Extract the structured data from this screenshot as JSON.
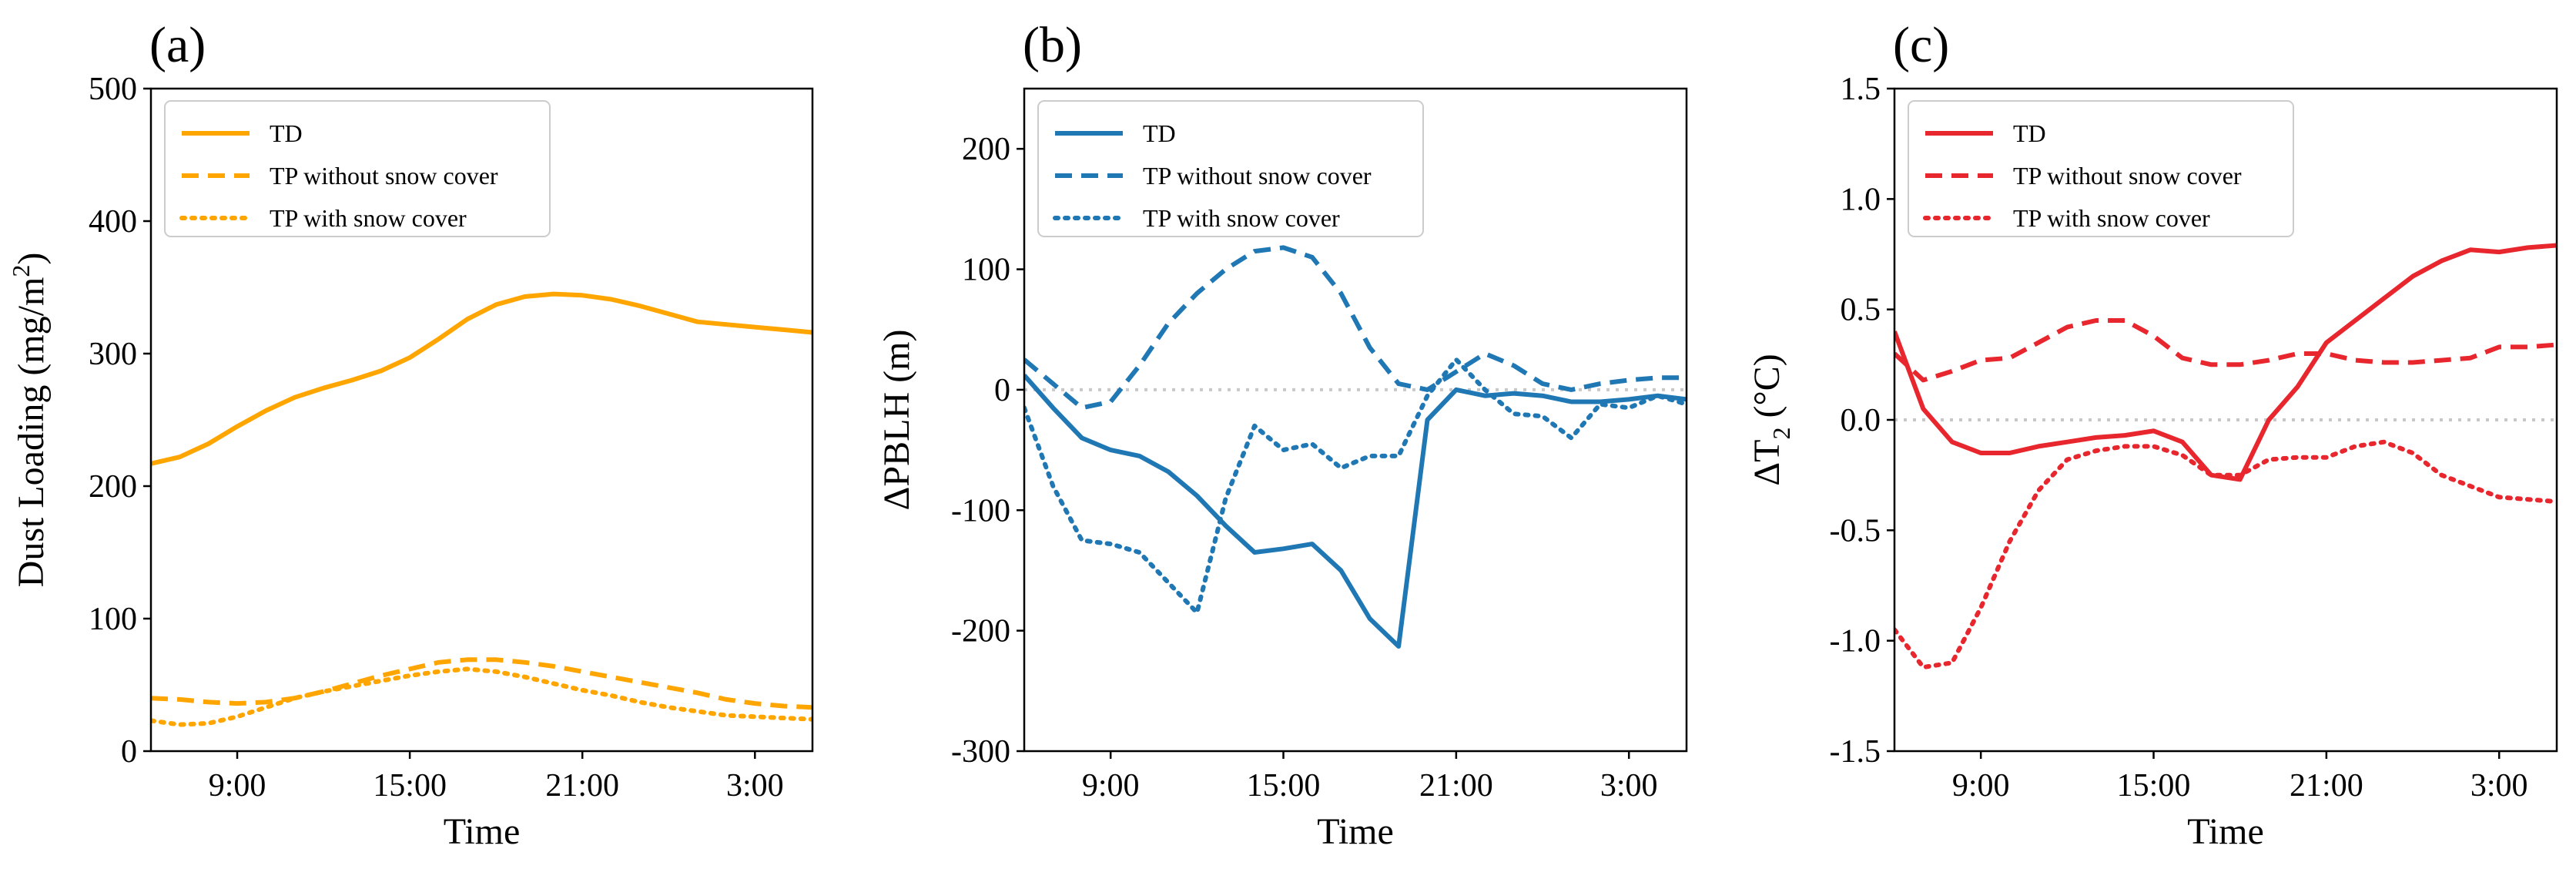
{
  "figure": {
    "time_ticks": [
      "9:00",
      "15:00",
      "21:00",
      "3:00"
    ],
    "zero_line_color": "#c8c8c8"
  },
  "chart_data": [
    {
      "type": "line",
      "panel_label": "(a)",
      "title": "",
      "xlabel": "Time",
      "ylabel": "Dust Loading (mg/m²)",
      "ylabel_parts": {
        "main": "Dust Loading (mg/m",
        "sup": "2",
        "end": ")"
      },
      "x_unit": "hours since 06:00",
      "xlim": [
        0,
        23
      ],
      "xticks": [
        3,
        9,
        15,
        21
      ],
      "xtick_labels": [
        "9:00",
        "15:00",
        "21:00",
        "3:00"
      ],
      "ylim": [
        0,
        500
      ],
      "yticks": [
        0,
        100,
        200,
        300,
        400,
        500
      ],
      "ytick_labels": [
        "0",
        "100",
        "200",
        "300",
        "400",
        "500"
      ],
      "zero_line": false,
      "color": "#FFA500",
      "legend_position": "top-left",
      "series": [
        {
          "name": "TD",
          "style": "solid",
          "x": [
            0,
            1,
            2,
            3,
            4,
            5,
            6,
            7,
            8,
            9,
            10,
            11,
            12,
            13,
            14,
            15,
            16,
            17,
            18,
            19,
            20,
            21,
            22,
            23
          ],
          "values": [
            217,
            222,
            232,
            245,
            257,
            267,
            274,
            280,
            287,
            297,
            311,
            326,
            337,
            343,
            345,
            344,
            341,
            336,
            330,
            324,
            322,
            320,
            318,
            316
          ]
        },
        {
          "name": "TP without snow cover",
          "style": "dashed",
          "x": [
            0,
            1,
            2,
            3,
            4,
            5,
            6,
            7,
            8,
            9,
            10,
            11,
            12,
            13,
            14,
            15,
            16,
            17,
            18,
            19,
            20,
            21,
            22,
            23
          ],
          "values": [
            40,
            39,
            37,
            36,
            37,
            40,
            45,
            51,
            57,
            62,
            67,
            69,
            69,
            67,
            64,
            60,
            56,
            52,
            48,
            44,
            39,
            36,
            34,
            33
          ]
        },
        {
          "name": "TP with snow cover",
          "style": "dotted",
          "x": [
            0,
            1,
            2,
            3,
            4,
            5,
            6,
            7,
            8,
            9,
            10,
            11,
            12,
            13,
            14,
            15,
            16,
            17,
            18,
            19,
            20,
            21,
            22,
            23
          ],
          "values": [
            23,
            20,
            21,
            26,
            33,
            40,
            45,
            49,
            53,
            57,
            60,
            62,
            60,
            56,
            51,
            46,
            42,
            37,
            33,
            30,
            27,
            26,
            25,
            24
          ]
        }
      ]
    },
    {
      "type": "line",
      "panel_label": "(b)",
      "title": "",
      "xlabel": "Time",
      "ylabel": "ΔPBLH (m)",
      "x_unit": "hours since 06:00",
      "xlim": [
        0,
        23
      ],
      "xticks": [
        3,
        9,
        15,
        21
      ],
      "xtick_labels": [
        "9:00",
        "15:00",
        "21:00",
        "3:00"
      ],
      "ylim": [
        -300,
        250
      ],
      "yticks": [
        -300,
        -200,
        -100,
        0,
        100,
        200
      ],
      "ytick_labels": [
        "-300",
        "-200",
        "-100",
        "0",
        "100",
        "200"
      ],
      "zero_line": true,
      "color": "#1F77B4",
      "legend_position": "top-left",
      "series": [
        {
          "name": "TD",
          "style": "solid",
          "x": [
            0,
            1,
            2,
            3,
            4,
            5,
            6,
            7,
            8,
            9,
            10,
            11,
            12,
            13,
            14,
            15,
            16,
            17,
            18,
            19,
            20,
            21,
            22,
            23
          ],
          "values": [
            12,
            -15,
            -40,
            -50,
            -55,
            -68,
            -88,
            -113,
            -135,
            -132,
            -128,
            -150,
            -190,
            -213,
            -25,
            0,
            -5,
            -3,
            -5,
            -10,
            -10,
            -8,
            -5,
            -8
          ]
        },
        {
          "name": "TP without snow cover",
          "style": "dashed",
          "x": [
            0,
            1,
            2,
            3,
            4,
            5,
            6,
            7,
            8,
            9,
            10,
            11,
            12,
            13,
            14,
            15,
            16,
            17,
            18,
            19,
            20,
            21,
            22,
            23
          ],
          "values": [
            25,
            5,
            -15,
            -10,
            20,
            55,
            80,
            100,
            115,
            118,
            110,
            80,
            35,
            5,
            0,
            15,
            30,
            20,
            5,
            0,
            5,
            8,
            10,
            10
          ]
        },
        {
          "name": "TP with snow cover",
          "style": "dotted",
          "x": [
            0,
            1,
            2,
            3,
            4,
            5,
            6,
            7,
            8,
            9,
            10,
            11,
            12,
            13,
            14,
            15,
            16,
            17,
            18,
            19,
            20,
            21,
            22,
            23
          ],
          "values": [
            -15,
            -80,
            -125,
            -128,
            -135,
            -160,
            -185,
            -90,
            -30,
            -50,
            -45,
            -65,
            -55,
            -55,
            -5,
            25,
            0,
            -20,
            -22,
            -40,
            -12,
            -15,
            -5,
            -12
          ]
        }
      ]
    },
    {
      "type": "line",
      "panel_label": "(c)",
      "title": "",
      "xlabel": "Time",
      "ylabel": "ΔT₂ (°C)",
      "ylabel_parts": {
        "main": "ΔT",
        "sub": "2",
        "end": " (°C)"
      },
      "x_unit": "hours since 06:00",
      "xlim": [
        0,
        23
      ],
      "xticks": [
        3,
        9,
        15,
        21
      ],
      "xtick_labels": [
        "9:00",
        "15:00",
        "21:00",
        "3:00"
      ],
      "ylim": [
        -1.5,
        1.5
      ],
      "yticks": [
        -1.5,
        -1.0,
        -0.5,
        0.0,
        0.5,
        1.0,
        1.5
      ],
      "ytick_labels": [
        "-1.5",
        "-1.0",
        "-0.5",
        "0.0",
        "0.5",
        "1.0",
        "1.5"
      ],
      "zero_line": true,
      "color": "#E8262E",
      "legend_position": "top-left",
      "series": [
        {
          "name": "TD",
          "style": "solid",
          "x": [
            0,
            1,
            2,
            3,
            4,
            5,
            6,
            7,
            8,
            9,
            10,
            11,
            12,
            13,
            14,
            15,
            16,
            17,
            18,
            19,
            20,
            21,
            22,
            23
          ],
          "values": [
            0.4,
            0.05,
            -0.1,
            -0.15,
            -0.15,
            -0.12,
            -0.1,
            -0.08,
            -0.07,
            -0.05,
            -0.1,
            -0.25,
            -0.27,
            0.0,
            0.15,
            0.35,
            0.45,
            0.55,
            0.65,
            0.72,
            0.77,
            0.76,
            0.78,
            0.79
          ]
        },
        {
          "name": "TP without snow cover",
          "style": "dashed",
          "x": [
            0,
            1,
            2,
            3,
            4,
            5,
            6,
            7,
            8,
            9,
            10,
            11,
            12,
            13,
            14,
            15,
            16,
            17,
            18,
            19,
            20,
            21,
            22,
            23
          ],
          "values": [
            0.3,
            0.18,
            0.22,
            0.27,
            0.28,
            0.35,
            0.42,
            0.45,
            0.45,
            0.38,
            0.28,
            0.25,
            0.25,
            0.27,
            0.3,
            0.3,
            0.27,
            0.26,
            0.26,
            0.27,
            0.28,
            0.33,
            0.33,
            0.34
          ]
        },
        {
          "name": "TP with snow cover",
          "style": "dotted",
          "x": [
            0,
            1,
            2,
            3,
            4,
            5,
            6,
            7,
            8,
            9,
            10,
            11,
            12,
            13,
            14,
            15,
            16,
            17,
            18,
            19,
            20,
            21,
            22,
            23
          ],
          "values": [
            -0.95,
            -1.12,
            -1.1,
            -0.85,
            -0.55,
            -0.32,
            -0.18,
            -0.14,
            -0.12,
            -0.12,
            -0.16,
            -0.25,
            -0.25,
            -0.18,
            -0.17,
            -0.17,
            -0.12,
            -0.1,
            -0.15,
            -0.25,
            -0.3,
            -0.35,
            -0.36,
            -0.37
          ]
        }
      ]
    }
  ]
}
